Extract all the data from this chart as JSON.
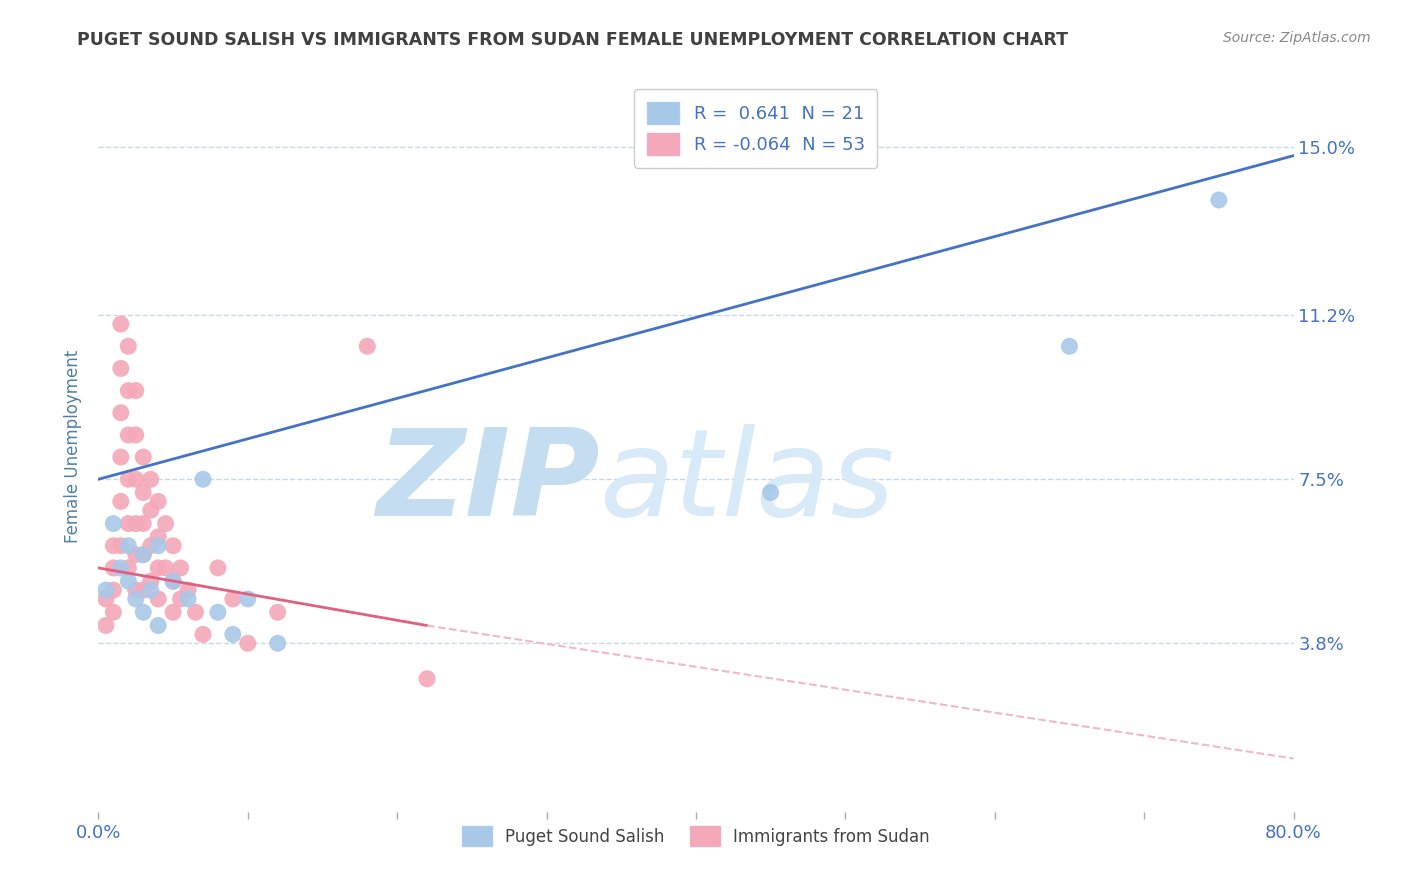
{
  "title": "PUGET SOUND SALISH VS IMMIGRANTS FROM SUDAN FEMALE UNEMPLOYMENT CORRELATION CHART",
  "source": "Source: ZipAtlas.com",
  "ylabel": "Female Unemployment",
  "xlim": [
    0.0,
    0.8
  ],
  "ylim": [
    0.0,
    0.165
  ],
  "yticks": [
    0.038,
    0.075,
    0.112,
    0.15
  ],
  "ytick_labels": [
    "3.8%",
    "7.5%",
    "11.2%",
    "15.0%"
  ],
  "xticks": [
    0.0,
    0.1,
    0.2,
    0.3,
    0.4,
    0.5,
    0.6,
    0.7,
    0.8
  ],
  "xtick_labels": [
    "0.0%",
    "",
    "",
    "",
    "",
    "",
    "",
    "",
    "80.0%"
  ],
  "legend_r1": "R =  0.641  N = 21",
  "legend_r2": "R = -0.064  N = 53",
  "legend_label1": "Puget Sound Salish",
  "legend_label2": "Immigrants from Sudan",
  "color_blue": "#a8c8e8",
  "color_pink": "#f4a8b8",
  "color_blue_line": "#4472c4",
  "color_pink_line": "#e06080",
  "color_pink_dashed": "#f0b8c8",
  "watermark_color": "#d8eaf8",
  "blue_scatter_x": [
    0.005,
    0.01,
    0.015,
    0.02,
    0.02,
    0.025,
    0.03,
    0.03,
    0.035,
    0.04,
    0.04,
    0.05,
    0.06,
    0.07,
    0.08,
    0.09,
    0.1,
    0.12,
    0.45,
    0.65,
    0.75
  ],
  "blue_scatter_y": [
    0.05,
    0.065,
    0.055,
    0.06,
    0.052,
    0.048,
    0.058,
    0.045,
    0.05,
    0.06,
    0.042,
    0.052,
    0.048,
    0.075,
    0.045,
    0.04,
    0.048,
    0.038,
    0.072,
    0.105,
    0.138
  ],
  "pink_scatter_x": [
    0.005,
    0.005,
    0.01,
    0.01,
    0.01,
    0.01,
    0.015,
    0.015,
    0.015,
    0.015,
    0.015,
    0.015,
    0.02,
    0.02,
    0.02,
    0.02,
    0.02,
    0.02,
    0.025,
    0.025,
    0.025,
    0.025,
    0.025,
    0.025,
    0.03,
    0.03,
    0.03,
    0.03,
    0.03,
    0.035,
    0.035,
    0.035,
    0.035,
    0.04,
    0.04,
    0.04,
    0.04,
    0.045,
    0.045,
    0.05,
    0.05,
    0.05,
    0.055,
    0.055,
    0.06,
    0.065,
    0.07,
    0.08,
    0.09,
    0.1,
    0.12,
    0.18,
    0.22
  ],
  "pink_scatter_y": [
    0.048,
    0.042,
    0.06,
    0.055,
    0.05,
    0.045,
    0.11,
    0.1,
    0.09,
    0.08,
    0.07,
    0.06,
    0.105,
    0.095,
    0.085,
    0.075,
    0.065,
    0.055,
    0.095,
    0.085,
    0.075,
    0.065,
    0.058,
    0.05,
    0.08,
    0.072,
    0.065,
    0.058,
    0.05,
    0.075,
    0.068,
    0.06,
    0.052,
    0.07,
    0.062,
    0.055,
    0.048,
    0.065,
    0.055,
    0.06,
    0.052,
    0.045,
    0.055,
    0.048,
    0.05,
    0.045,
    0.04,
    0.055,
    0.048,
    0.038,
    0.045,
    0.105,
    0.03
  ],
  "blue_line_x": [
    0.0,
    0.8
  ],
  "blue_line_y": [
    0.075,
    0.148
  ],
  "pink_solid_line_x": [
    0.0,
    0.22
  ],
  "pink_solid_line_y": [
    0.055,
    0.042
  ],
  "pink_dashed_line_x": [
    0.22,
    0.8
  ],
  "pink_dashed_line_y": [
    0.042,
    0.012
  ],
  "background_color": "#ffffff",
  "grid_color": "#c8d8e8",
  "title_color": "#404040",
  "axis_label_color": "#5080a0",
  "tick_label_color": "#4472c4"
}
